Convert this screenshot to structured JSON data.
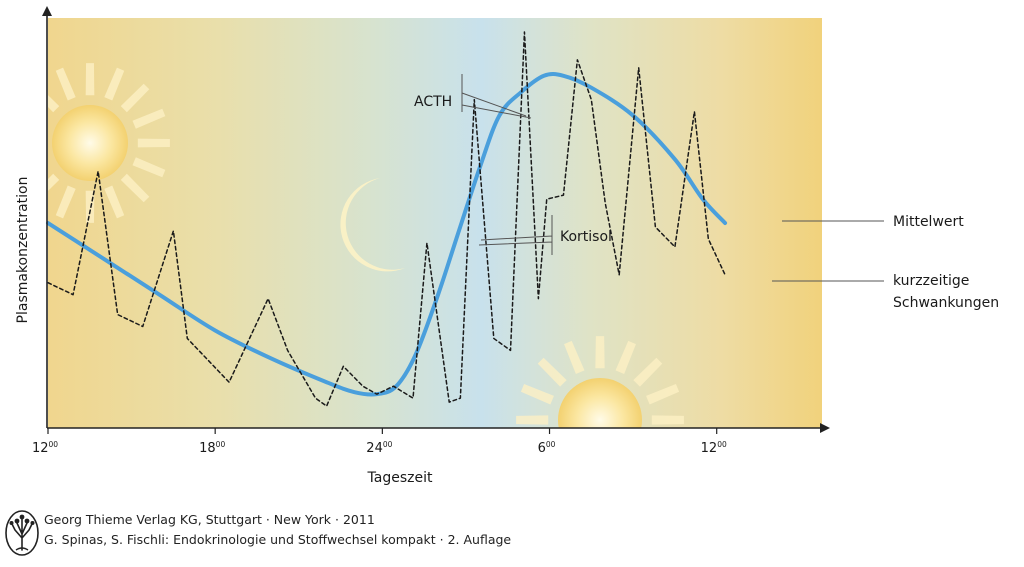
{
  "chart_data": {
    "type": "line",
    "xlabel": "Tageszeit",
    "ylabel": "Plasmakonzentration",
    "xlim": [
      0,
      27
    ],
    "ylim": [
      0,
      1
    ],
    "x_ticks": [
      {
        "x": 0,
        "main": "12",
        "sup": "00"
      },
      {
        "x": 6,
        "main": "18",
        "sup": "00"
      },
      {
        "x": 12,
        "main": "24",
        "sup": "00"
      },
      {
        "x": 18,
        "main": "6",
        "sup": "00"
      },
      {
        "x": 24,
        "main": "12",
        "sup": "00"
      }
    ],
    "series": [
      {
        "name": "Mittelwert",
        "style": "solid",
        "color": "#4a9fdc",
        "points": [
          [
            0,
            0.51
          ],
          [
            2,
            0.42
          ],
          [
            4,
            0.33
          ],
          [
            6,
            0.24
          ],
          [
            8,
            0.17
          ],
          [
            10,
            0.11
          ],
          [
            11,
            0.085
          ],
          [
            11.8,
            0.08
          ],
          [
            12.5,
            0.1
          ],
          [
            13.2,
            0.18
          ],
          [
            14,
            0.33
          ],
          [
            14.7,
            0.48
          ],
          [
            15.5,
            0.65
          ],
          [
            16.2,
            0.78
          ],
          [
            17,
            0.84
          ],
          [
            17.8,
            0.88
          ],
          [
            18.5,
            0.88
          ],
          [
            19.5,
            0.85
          ],
          [
            21,
            0.78
          ],
          [
            22.5,
            0.67
          ],
          [
            23.5,
            0.57
          ],
          [
            24.3,
            0.51
          ]
        ]
      },
      {
        "name": "kurzzeitige Schwankungen",
        "style": "dashed",
        "color": "#1a1a1a",
        "points": [
          [
            0,
            0.36
          ],
          [
            0.9,
            0.33
          ],
          [
            1.8,
            0.64
          ],
          [
            2.5,
            0.28
          ],
          [
            3.4,
            0.25
          ],
          [
            4.5,
            0.49
          ],
          [
            5,
            0.22
          ],
          [
            6.5,
            0.11
          ],
          [
            7.9,
            0.32
          ],
          [
            8.6,
            0.19
          ],
          [
            9.6,
            0.07
          ],
          [
            10,
            0.05
          ],
          [
            10.6,
            0.15
          ],
          [
            11.3,
            0.1
          ],
          [
            11.8,
            0.08
          ],
          [
            12.4,
            0.1
          ],
          [
            13.1,
            0.07
          ],
          [
            13.6,
            0.46
          ],
          [
            14.4,
            0.06
          ],
          [
            14.8,
            0.07
          ],
          [
            15.3,
            0.82
          ],
          [
            16,
            0.22
          ],
          [
            16.6,
            0.19
          ],
          [
            17.1,
            0.99
          ],
          [
            17.6,
            0.32
          ],
          [
            17.9,
            0.57
          ],
          [
            18.5,
            0.58
          ],
          [
            19,
            0.92
          ],
          [
            19.5,
            0.82
          ],
          [
            20,
            0.56
          ],
          [
            20.5,
            0.38
          ],
          [
            21.2,
            0.9
          ],
          [
            21.8,
            0.5
          ],
          [
            22.5,
            0.45
          ],
          [
            23.2,
            0.79
          ],
          [
            23.7,
            0.47
          ],
          [
            24.3,
            0.38
          ]
        ]
      }
    ],
    "annotations": [
      {
        "text": "ACTH"
      },
      {
        "text": "Kortisol"
      }
    ],
    "legend_labels": [
      {
        "text": "Mittelwert"
      },
      {
        "text": "kurzzeitige"
      },
      {
        "text": "Schwankungen"
      }
    ]
  },
  "credits": {
    "line1": "Georg Thieme Verlag KG, Stuttgart · New York · 2011",
    "line2": "G. Spinas, S. Fischli: Endokrinologie und Stoffwechsel kompakt · 2. Auflage"
  }
}
